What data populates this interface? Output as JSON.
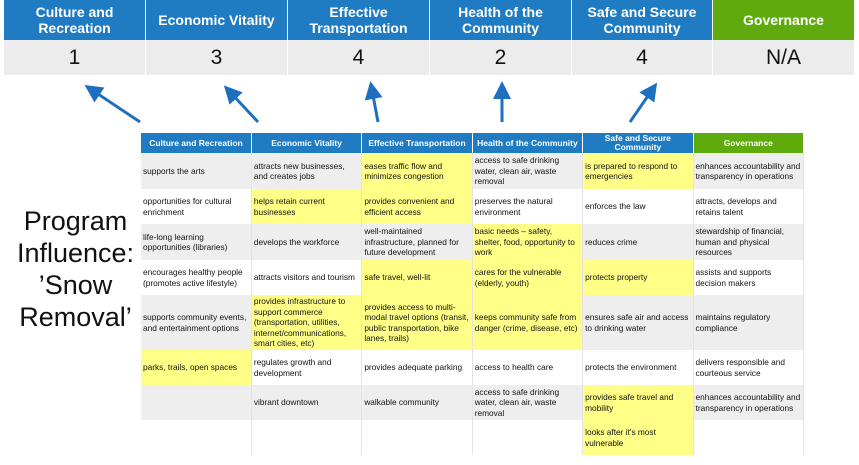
{
  "colors": {
    "header_blue": "#1f7cc2",
    "governance_green": "#5fab0e",
    "highlight": "#ffff88",
    "arrow": "#1f6fc0"
  },
  "pillars": [
    {
      "label": "Culture and Recreation",
      "score": "1"
    },
    {
      "label": "Economic Vitality",
      "score": "3"
    },
    {
      "label": "Effective Transportation",
      "score": "4"
    },
    {
      "label": "Health of the Community",
      "score": "2"
    },
    {
      "label": "Safe and Secure Community",
      "score": "4"
    },
    {
      "label": "Governance",
      "score": "N/A"
    }
  ],
  "program_label": "Program Influence: ’Snow Removal’",
  "table": {
    "headers": [
      "Culture and Recreation",
      "Economic Vitality",
      "Effective Transportation",
      "Health of the Community",
      "Safe and Secure Community",
      "Governance"
    ],
    "rows": [
      [
        "supports the arts",
        "attracts new businesses, and creates jobs",
        "eases traffic flow and minimizes congestion",
        "access to safe drinking water, clean air, waste removal",
        "is prepared to respond to emergencies",
        "enhances accountability and transparency in operations"
      ],
      [
        "opportunities for cultural enrichment",
        "helps retain current businesses",
        "provides convenient and efficient access",
        "preserves the natural environment",
        "enforces the law",
        "attracts, develops and retains talent"
      ],
      [
        "life-long learning opportunities (libraries)",
        "develops the workforce",
        "well-maintained infrastructure, planned for future development",
        "basic needs – safety, shelter, food, opportunity to work",
        "reduces crime",
        "stewardship of financial, human and physical resources"
      ],
      [
        "encourages healthy people (promotes active lifestyle)",
        "attracts visitors and tourism",
        "safe travel, well-lit",
        "cares for the vulnerable (elderly, youth)",
        "protects property",
        "assists and supports decision makers"
      ],
      [
        "supports community events, and entertainment options",
        "provides infrastructure to support commerce (transportation, utilities, internet/communications, smart cities, etc)",
        "provides access to multi-modal travel options (transit, public transportation, bike lanes, trails)",
        "keeps community safe from danger (crime, disease, etc)",
        "ensures safe air and access to drinking water",
        "maintains regulatory compliance"
      ],
      [
        "parks, trails, open spaces",
        "regulates growth and development",
        "provides adequate parking",
        "access to health care",
        "protects the environment",
        "delivers responsible and courteous service"
      ],
      [
        "",
        "vibrant downtown",
        "walkable community",
        "access to safe drinking water, clean air, waste removal",
        "provides safe travel and mobility",
        "enhances accountability and transparency in operations"
      ],
      [
        "",
        "",
        "",
        "",
        "looks after it's most vulnerable",
        ""
      ]
    ],
    "highlighted": [
      [
        2,
        4
      ],
      [
        1,
        2
      ],
      [
        3
      ],
      [
        2,
        3,
        4
      ],
      [
        1,
        2,
        3
      ],
      [
        0
      ],
      [
        4
      ],
      [
        4
      ]
    ]
  }
}
